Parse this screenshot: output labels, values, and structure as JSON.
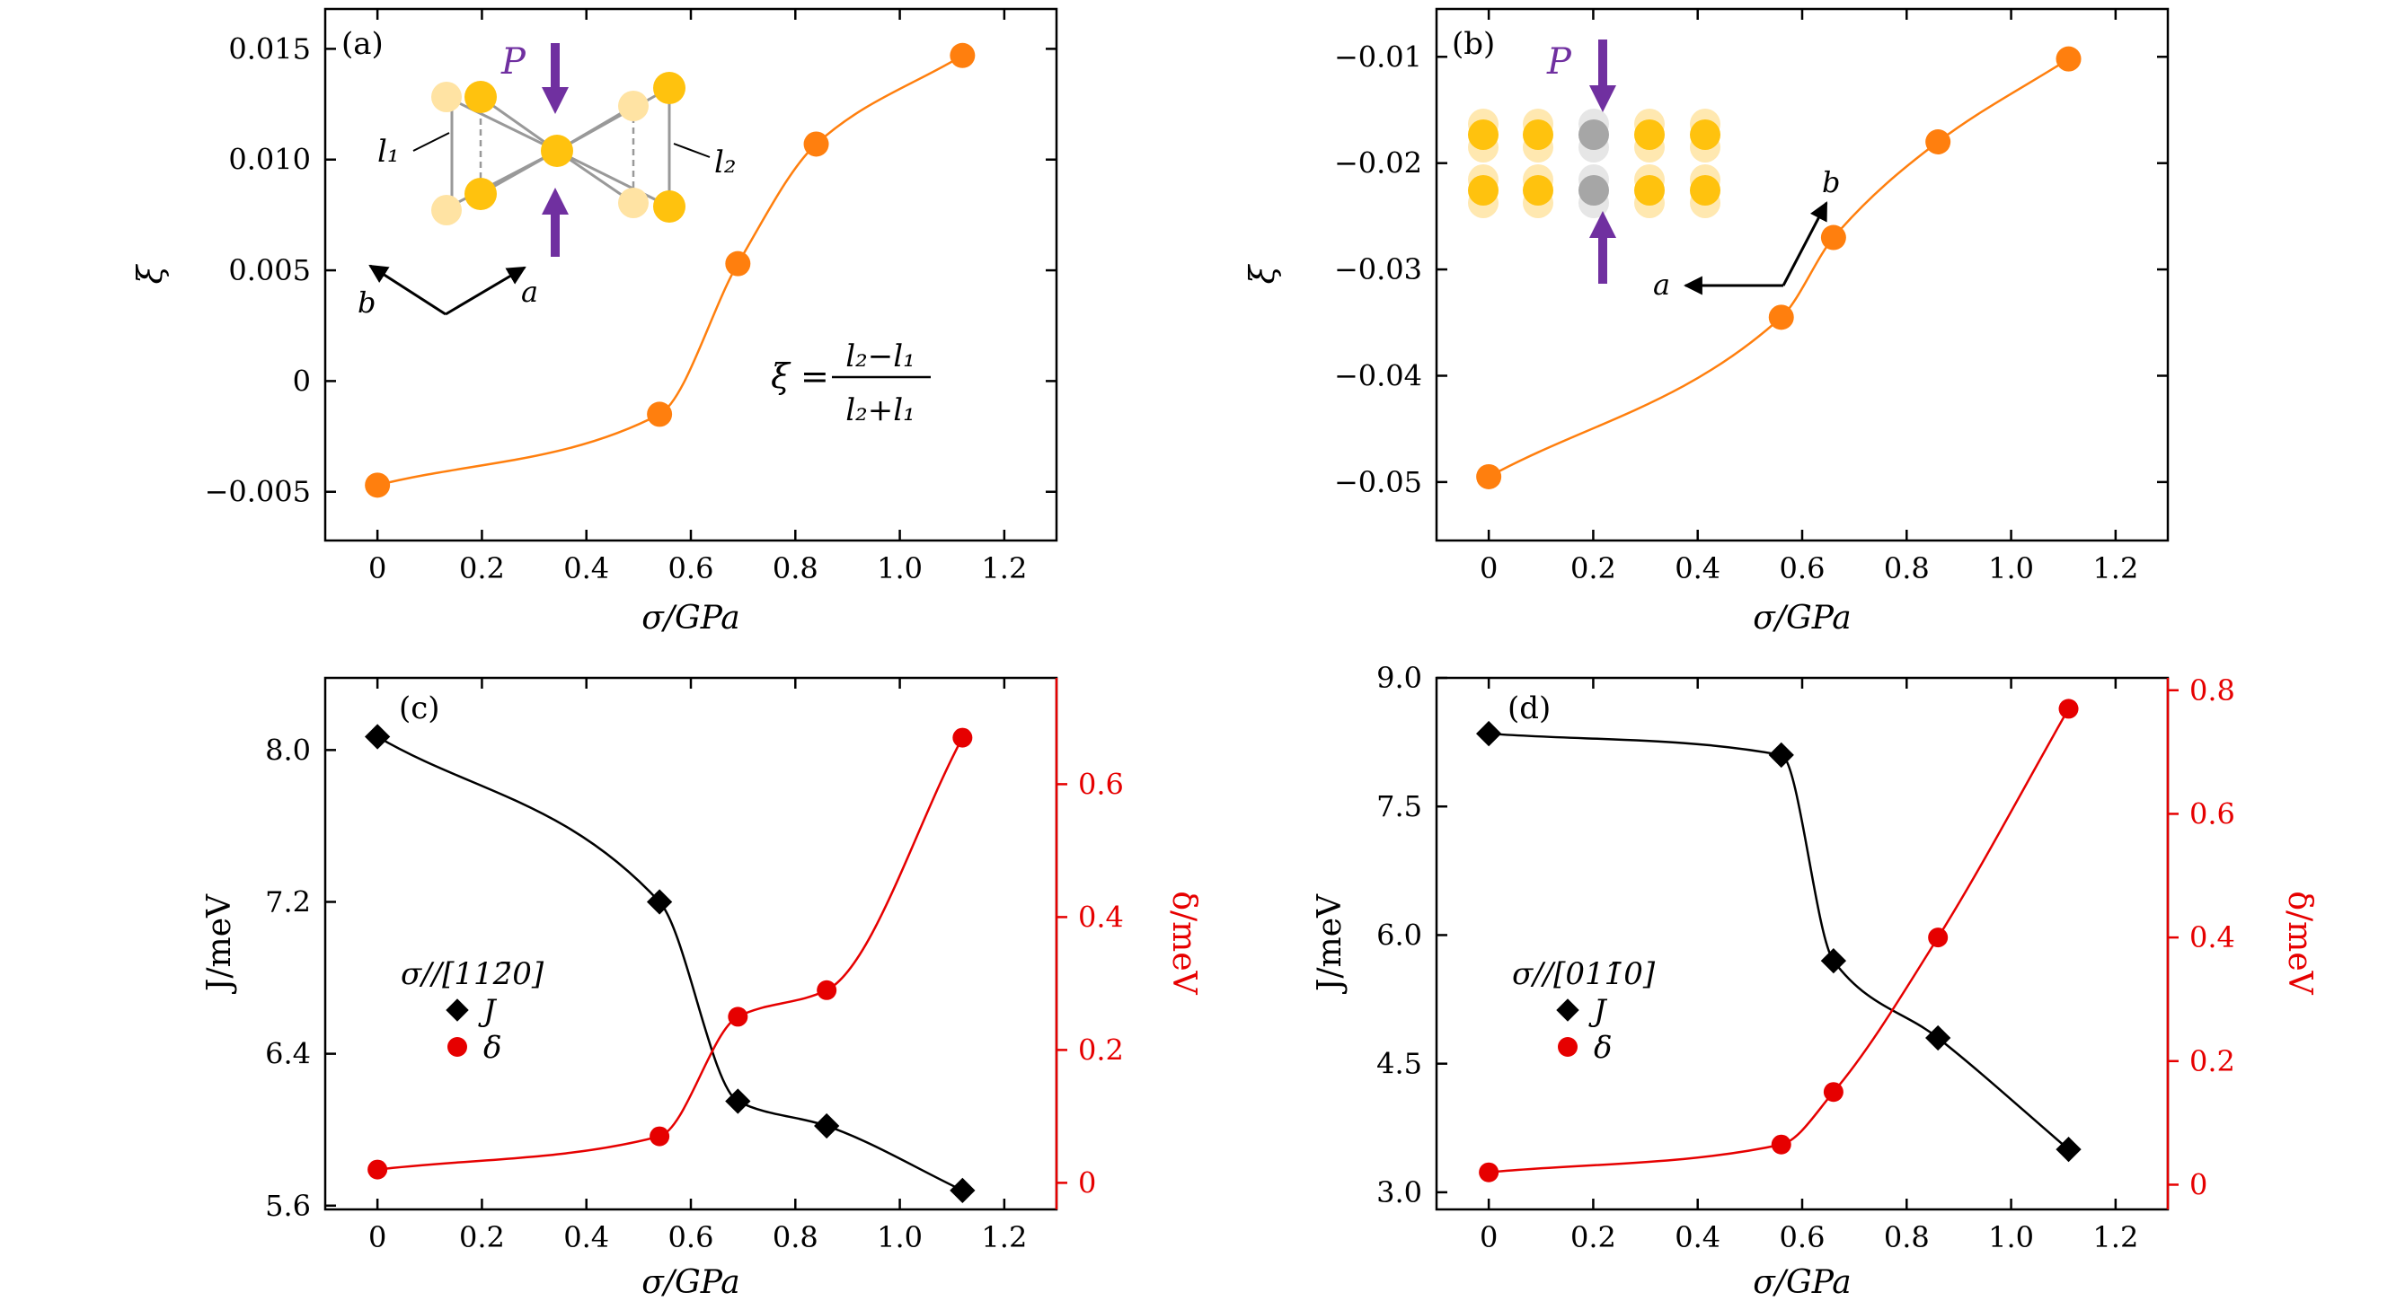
{
  "chart_data": [
    {
      "panel": "(a)",
      "type": "line",
      "xlabel": "σ/GPa",
      "ylabel": "ξ",
      "xlim": [
        -0.1,
        1.3
      ],
      "ylim": [
        -0.0072,
        0.0168
      ],
      "xticks": [
        0,
        0.2,
        0.4,
        0.6,
        0.8,
        1.0,
        1.2
      ],
      "xtick_labels": [
        "0",
        "0.2",
        "0.4",
        "0.6",
        "0.8",
        "1.0",
        "1.2"
      ],
      "yticks": [
        -0.005,
        0,
        0.005,
        0.01,
        0.015
      ],
      "ytick_labels": [
        "−0.005",
        "0",
        "0.005",
        "0.010",
        "0.015"
      ],
      "series": [
        {
          "name": "ξ",
          "color": "#ff7f0e",
          "x": [
            0,
            0.54,
            0.69,
            0.84,
            1.12
          ],
          "y": [
            -0.0047,
            -0.0015,
            0.0053,
            0.0107,
            0.0147
          ]
        }
      ],
      "formula": {
        "lhs": "ξ =",
        "numerator": "l₂−l₁",
        "denominator": "l₂+l₁"
      },
      "inset_labels": {
        "P": "P",
        "l1": "l₁",
        "l2": "l₂",
        "a": "a",
        "b": "b"
      }
    },
    {
      "panel": "(b)",
      "type": "line",
      "xlabel": "σ/GPa",
      "ylabel": "ξ",
      "xlim": [
        -0.1,
        1.3
      ],
      "ylim": [
        -0.0555,
        -0.0055
      ],
      "xticks": [
        0,
        0.2,
        0.4,
        0.6,
        0.8,
        1.0,
        1.2
      ],
      "xtick_labels": [
        "0",
        "0.2",
        "0.4",
        "0.6",
        "0.8",
        "1.0",
        "1.2"
      ],
      "yticks": [
        -0.05,
        -0.04,
        -0.03,
        -0.02,
        -0.01
      ],
      "ytick_labels": [
        "−0.05",
        "−0.04",
        "−0.03",
        "−0.02",
        "−0.01"
      ],
      "series": [
        {
          "name": "ξ",
          "color": "#ff7f0e",
          "x": [
            0,
            0.56,
            0.66,
            0.86,
            1.11
          ],
          "y": [
            -0.0495,
            -0.0345,
            -0.027,
            -0.018,
            -0.0102
          ]
        }
      ],
      "inset_labels": {
        "P": "P",
        "a": "a",
        "b": "b"
      }
    },
    {
      "panel": "(c)",
      "type": "line",
      "xlabel": "σ/GPa",
      "ylabel": "J/meV",
      "y2label": "δ/meV",
      "xlim": [
        -0.1,
        1.3
      ],
      "ylim": [
        5.58,
        8.38
      ],
      "y2lim": [
        -0.04,
        0.76
      ],
      "xticks": [
        0,
        0.2,
        0.4,
        0.6,
        0.8,
        1.0,
        1.2
      ],
      "xtick_labels": [
        "0",
        "0.2",
        "0.4",
        "0.6",
        "0.8",
        "1.0",
        "1.2"
      ],
      "yticks": [
        5.6,
        6.4,
        7.2,
        8.0
      ],
      "ytick_labels": [
        "5.6",
        "6.4",
        "7.2",
        "8.0"
      ],
      "y2ticks": [
        0,
        0.2,
        0.4,
        0.6
      ],
      "y2tick_labels": [
        "0",
        "0.2",
        "0.4",
        "0.6"
      ],
      "legend_title": "σ//[112̄0]",
      "series": [
        {
          "name": "J",
          "axis": "left",
          "marker": "diamond",
          "color": "#000000",
          "x": [
            0,
            0.54,
            0.69,
            0.86,
            1.12
          ],
          "y": [
            8.07,
            7.2,
            6.15,
            6.02,
            5.68
          ]
        },
        {
          "name": "δ",
          "axis": "right",
          "marker": "circle",
          "color": "#e60000",
          "x": [
            0,
            0.54,
            0.69,
            0.86,
            1.12
          ],
          "y": [
            0.02,
            0.07,
            0.25,
            0.29,
            0.67
          ]
        }
      ]
    },
    {
      "panel": "(d)",
      "type": "line",
      "xlabel": "σ/GPa",
      "ylabel": "J/meV",
      "y2label": "δ/meV",
      "xlim": [
        -0.1,
        1.3
      ],
      "ylim": [
        2.8,
        9.0
      ],
      "y2lim": [
        -0.04,
        0.82
      ],
      "xticks": [
        0,
        0.2,
        0.4,
        0.6,
        0.8,
        1.0,
        1.2
      ],
      "xtick_labels": [
        "0",
        "0.2",
        "0.4",
        "0.6",
        "0.8",
        "1.0",
        "1.2"
      ],
      "yticks": [
        3.0,
        4.5,
        6.0,
        7.5,
        9.0
      ],
      "ytick_labels": [
        "3.0",
        "4.5",
        "6.0",
        "7.5",
        "9.0"
      ],
      "y2ticks": [
        0,
        0.2,
        0.4,
        0.6,
        0.8
      ],
      "y2tick_labels": [
        "0",
        "0.2",
        "0.4",
        "0.6",
        "0.8"
      ],
      "legend_title": "σ//[011̄0]",
      "series": [
        {
          "name": "J",
          "axis": "left",
          "marker": "diamond",
          "color": "#000000",
          "x": [
            0,
            0.56,
            0.66,
            0.86,
            1.11
          ],
          "y": [
            8.35,
            8.1,
            5.7,
            4.8,
            3.5
          ]
        },
        {
          "name": "δ",
          "axis": "right",
          "marker": "circle",
          "color": "#e60000",
          "x": [
            0,
            0.56,
            0.66,
            0.86,
            1.11
          ],
          "y": [
            0.02,
            0.065,
            0.15,
            0.4,
            0.77
          ]
        }
      ]
    }
  ]
}
